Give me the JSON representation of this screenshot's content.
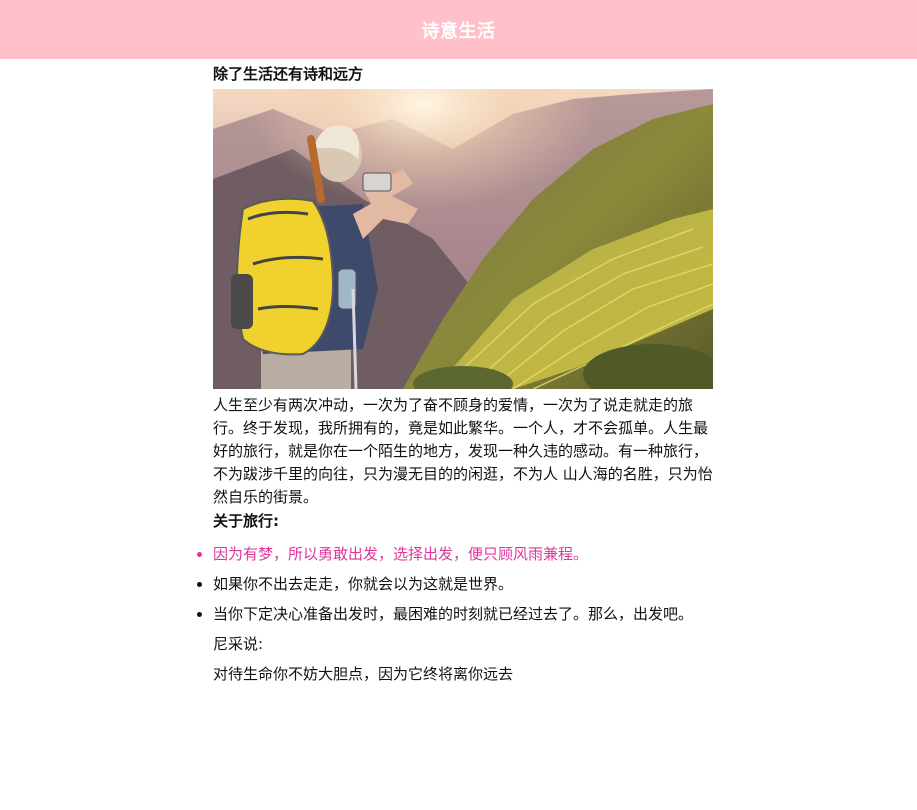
{
  "header": {
    "title": "诗意生活",
    "background": "#ffc0cb"
  },
  "article": {
    "title": "除了生活还有诗和远方",
    "paragraph": "人生至少有两次冲动，一次为了奋不顾身的爱情，一次为了说走就走的旅行。终于发现，我所拥有的，竟是如此繁华。一个人，才不会孤单。人生最好的旅行，就是你在一个陌生的地方，发现一种久违的感动。有一种旅行，不为跋涉千里的向往，只为漫无目的的闲逛，不为人 山人海的名胜，只为怡然自乐的街景。",
    "subheading": "关于旅行:",
    "list": [
      {
        "text": "因为有梦，所以勇敢出发，选择出发，便只顾风雨兼程。",
        "highlight": true
      },
      {
        "text": "如果你不出去走走，你就会以为这就是世界。",
        "highlight": false
      },
      {
        "text": "当你下定决心准备出发时，最困难的时刻就已经过去了。那么，出发吧。",
        "highlight": false
      }
    ],
    "quote_intro": "尼采说:",
    "quote": "对待生命你不妨大胆点，因为它终将离你远去",
    "highlight_color": "#e0359a"
  }
}
